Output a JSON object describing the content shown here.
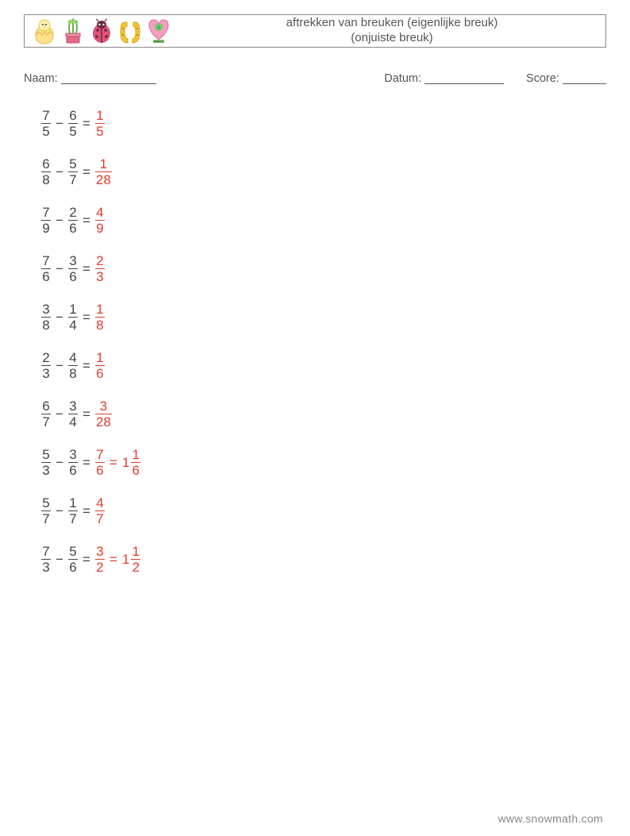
{
  "header": {
    "title_line1": "aftrekken van breuken (eigenlijke breuk)",
    "title_line2": "(onjuiste breuk)"
  },
  "icons": [
    {
      "name": "chick-egg"
    },
    {
      "name": "plant-pot"
    },
    {
      "name": "ladybug"
    },
    {
      "name": "horseshoe"
    },
    {
      "name": "heart-march"
    }
  ],
  "info": {
    "name_label": "Naam:",
    "date_label": "Datum:",
    "score_label": "Score:"
  },
  "answer_color": "#e33b2e",
  "text_color": "#444444",
  "problems": [
    {
      "a": {
        "n": 7,
        "d": 5
      },
      "b": {
        "n": 6,
        "d": 5
      },
      "ans": [
        {
          "n": 1,
          "d": 5
        }
      ]
    },
    {
      "a": {
        "n": 6,
        "d": 8
      },
      "b": {
        "n": 5,
        "d": 7
      },
      "ans": [
        {
          "n": 1,
          "d": 28
        }
      ]
    },
    {
      "a": {
        "n": 7,
        "d": 9
      },
      "b": {
        "n": 2,
        "d": 6
      },
      "ans": [
        {
          "n": 4,
          "d": 9
        }
      ]
    },
    {
      "a": {
        "n": 7,
        "d": 6
      },
      "b": {
        "n": 3,
        "d": 6
      },
      "ans": [
        {
          "n": 2,
          "d": 3
        }
      ]
    },
    {
      "a": {
        "n": 3,
        "d": 8
      },
      "b": {
        "n": 1,
        "d": 4
      },
      "ans": [
        {
          "n": 1,
          "d": 8
        }
      ]
    },
    {
      "a": {
        "n": 2,
        "d": 3
      },
      "b": {
        "n": 4,
        "d": 8
      },
      "ans": [
        {
          "n": 1,
          "d": 6
        }
      ]
    },
    {
      "a": {
        "n": 6,
        "d": 7
      },
      "b": {
        "n": 3,
        "d": 4
      },
      "ans": [
        {
          "n": 3,
          "d": 28
        }
      ]
    },
    {
      "a": {
        "n": 5,
        "d": 3
      },
      "b": {
        "n": 3,
        "d": 6
      },
      "ans": [
        {
          "n": 7,
          "d": 6
        },
        {
          "whole": 1,
          "n": 1,
          "d": 6
        }
      ]
    },
    {
      "a": {
        "n": 5,
        "d": 7
      },
      "b": {
        "n": 1,
        "d": 7
      },
      "ans": [
        {
          "n": 4,
          "d": 7
        }
      ]
    },
    {
      "a": {
        "n": 7,
        "d": 3
      },
      "b": {
        "n": 5,
        "d": 6
      },
      "ans": [
        {
          "n": 3,
          "d": 2
        },
        {
          "whole": 1,
          "n": 1,
          "d": 2
        }
      ]
    }
  ],
  "footer": "www.snowmath.com"
}
